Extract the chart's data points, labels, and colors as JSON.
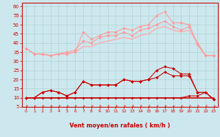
{
  "x": [
    0,
    1,
    2,
    3,
    4,
    5,
    6,
    7,
    8,
    9,
    10,
    11,
    12,
    13,
    14,
    15,
    16,
    17,
    18,
    19,
    20,
    21,
    22,
    23
  ],
  "series": [
    {
      "name": "rafales_max",
      "color": "#ff9999",
      "lw": 0.8,
      "marker": "D",
      "markersize": 2.0,
      "values": [
        37,
        34,
        34,
        33,
        34,
        34,
        35,
        46,
        42,
        44,
        46,
        46,
        48,
        47,
        49,
        50,
        55,
        57,
        51,
        51,
        50,
        39,
        33,
        33
      ]
    },
    {
      "name": "rafales_mid",
      "color": "#ff9999",
      "lw": 0.8,
      "marker": "D",
      "markersize": 2.0,
      "values": [
        37,
        34,
        34,
        33,
        34,
        35,
        36,
        41,
        40,
        43,
        44,
        44,
        46,
        44,
        47,
        48,
        50,
        52,
        49,
        47,
        49,
        40,
        33,
        33
      ]
    },
    {
      "name": "rafales_flat",
      "color": "#ffaaaa",
      "lw": 1.0,
      "marker": null,
      "markersize": 0,
      "values": [
        37,
        34,
        34,
        33,
        34,
        34,
        35,
        38,
        38,
        40,
        41,
        42,
        43,
        42,
        44,
        45,
        48,
        49,
        47,
        46,
        47,
        40,
        33,
        33
      ]
    },
    {
      "name": "vent_max",
      "color": "#cc0000",
      "lw": 0.8,
      "marker": "D",
      "markersize": 2.0,
      "values": [
        10,
        10,
        13,
        14,
        13,
        11,
        13,
        19,
        17,
        17,
        17,
        17,
        20,
        19,
        19,
        20,
        25,
        27,
        26,
        23,
        23,
        13,
        13,
        9
      ]
    },
    {
      "name": "vent_mid",
      "color": "#cc0000",
      "lw": 0.8,
      "marker": "D",
      "markersize": 2.0,
      "values": [
        10,
        10,
        13,
        14,
        13,
        11,
        13,
        19,
        17,
        17,
        17,
        17,
        20,
        19,
        19,
        20,
        21,
        24,
        22,
        22,
        22,
        13,
        13,
        9
      ]
    },
    {
      "name": "vent_flat",
      "color": "#cc0000",
      "lw": 1.2,
      "marker": null,
      "markersize": 0,
      "values": [
        10,
        10,
        10,
        10,
        10,
        10,
        10,
        10,
        10,
        10,
        10,
        10,
        10,
        10,
        10,
        10,
        10,
        10,
        10,
        10,
        10,
        10,
        10,
        10
      ]
    },
    {
      "name": "vent_base",
      "color": "#cc0000",
      "lw": 0.8,
      "marker": "D",
      "markersize": 1.8,
      "values": [
        10,
        10,
        10,
        10,
        10,
        10,
        10,
        10,
        10,
        10,
        10,
        10,
        10,
        10,
        10,
        10,
        10,
        10,
        10,
        10,
        11,
        11,
        13,
        9
      ]
    }
  ],
  "xlabel": "Vent moyen/en rafales ( km/h )",
  "yticks": [
    5,
    10,
    15,
    20,
    25,
    30,
    35,
    40,
    45,
    50,
    55,
    60
  ],
  "xticks": [
    0,
    1,
    2,
    3,
    4,
    5,
    6,
    7,
    8,
    9,
    10,
    11,
    12,
    13,
    14,
    15,
    16,
    17,
    18,
    19,
    20,
    21,
    22,
    23
  ],
  "bg_color": "#cce8ee",
  "grid_color": "#aacccc",
  "line_color": "#cc0000",
  "xlabel_color": "#cc0000",
  "tick_color": "#cc0000",
  "spine_color": "#cc0000",
  "ylim": [
    5,
    62
  ],
  "xlim": [
    -0.5,
    23.5
  ],
  "arrow_color": "#dd4444"
}
